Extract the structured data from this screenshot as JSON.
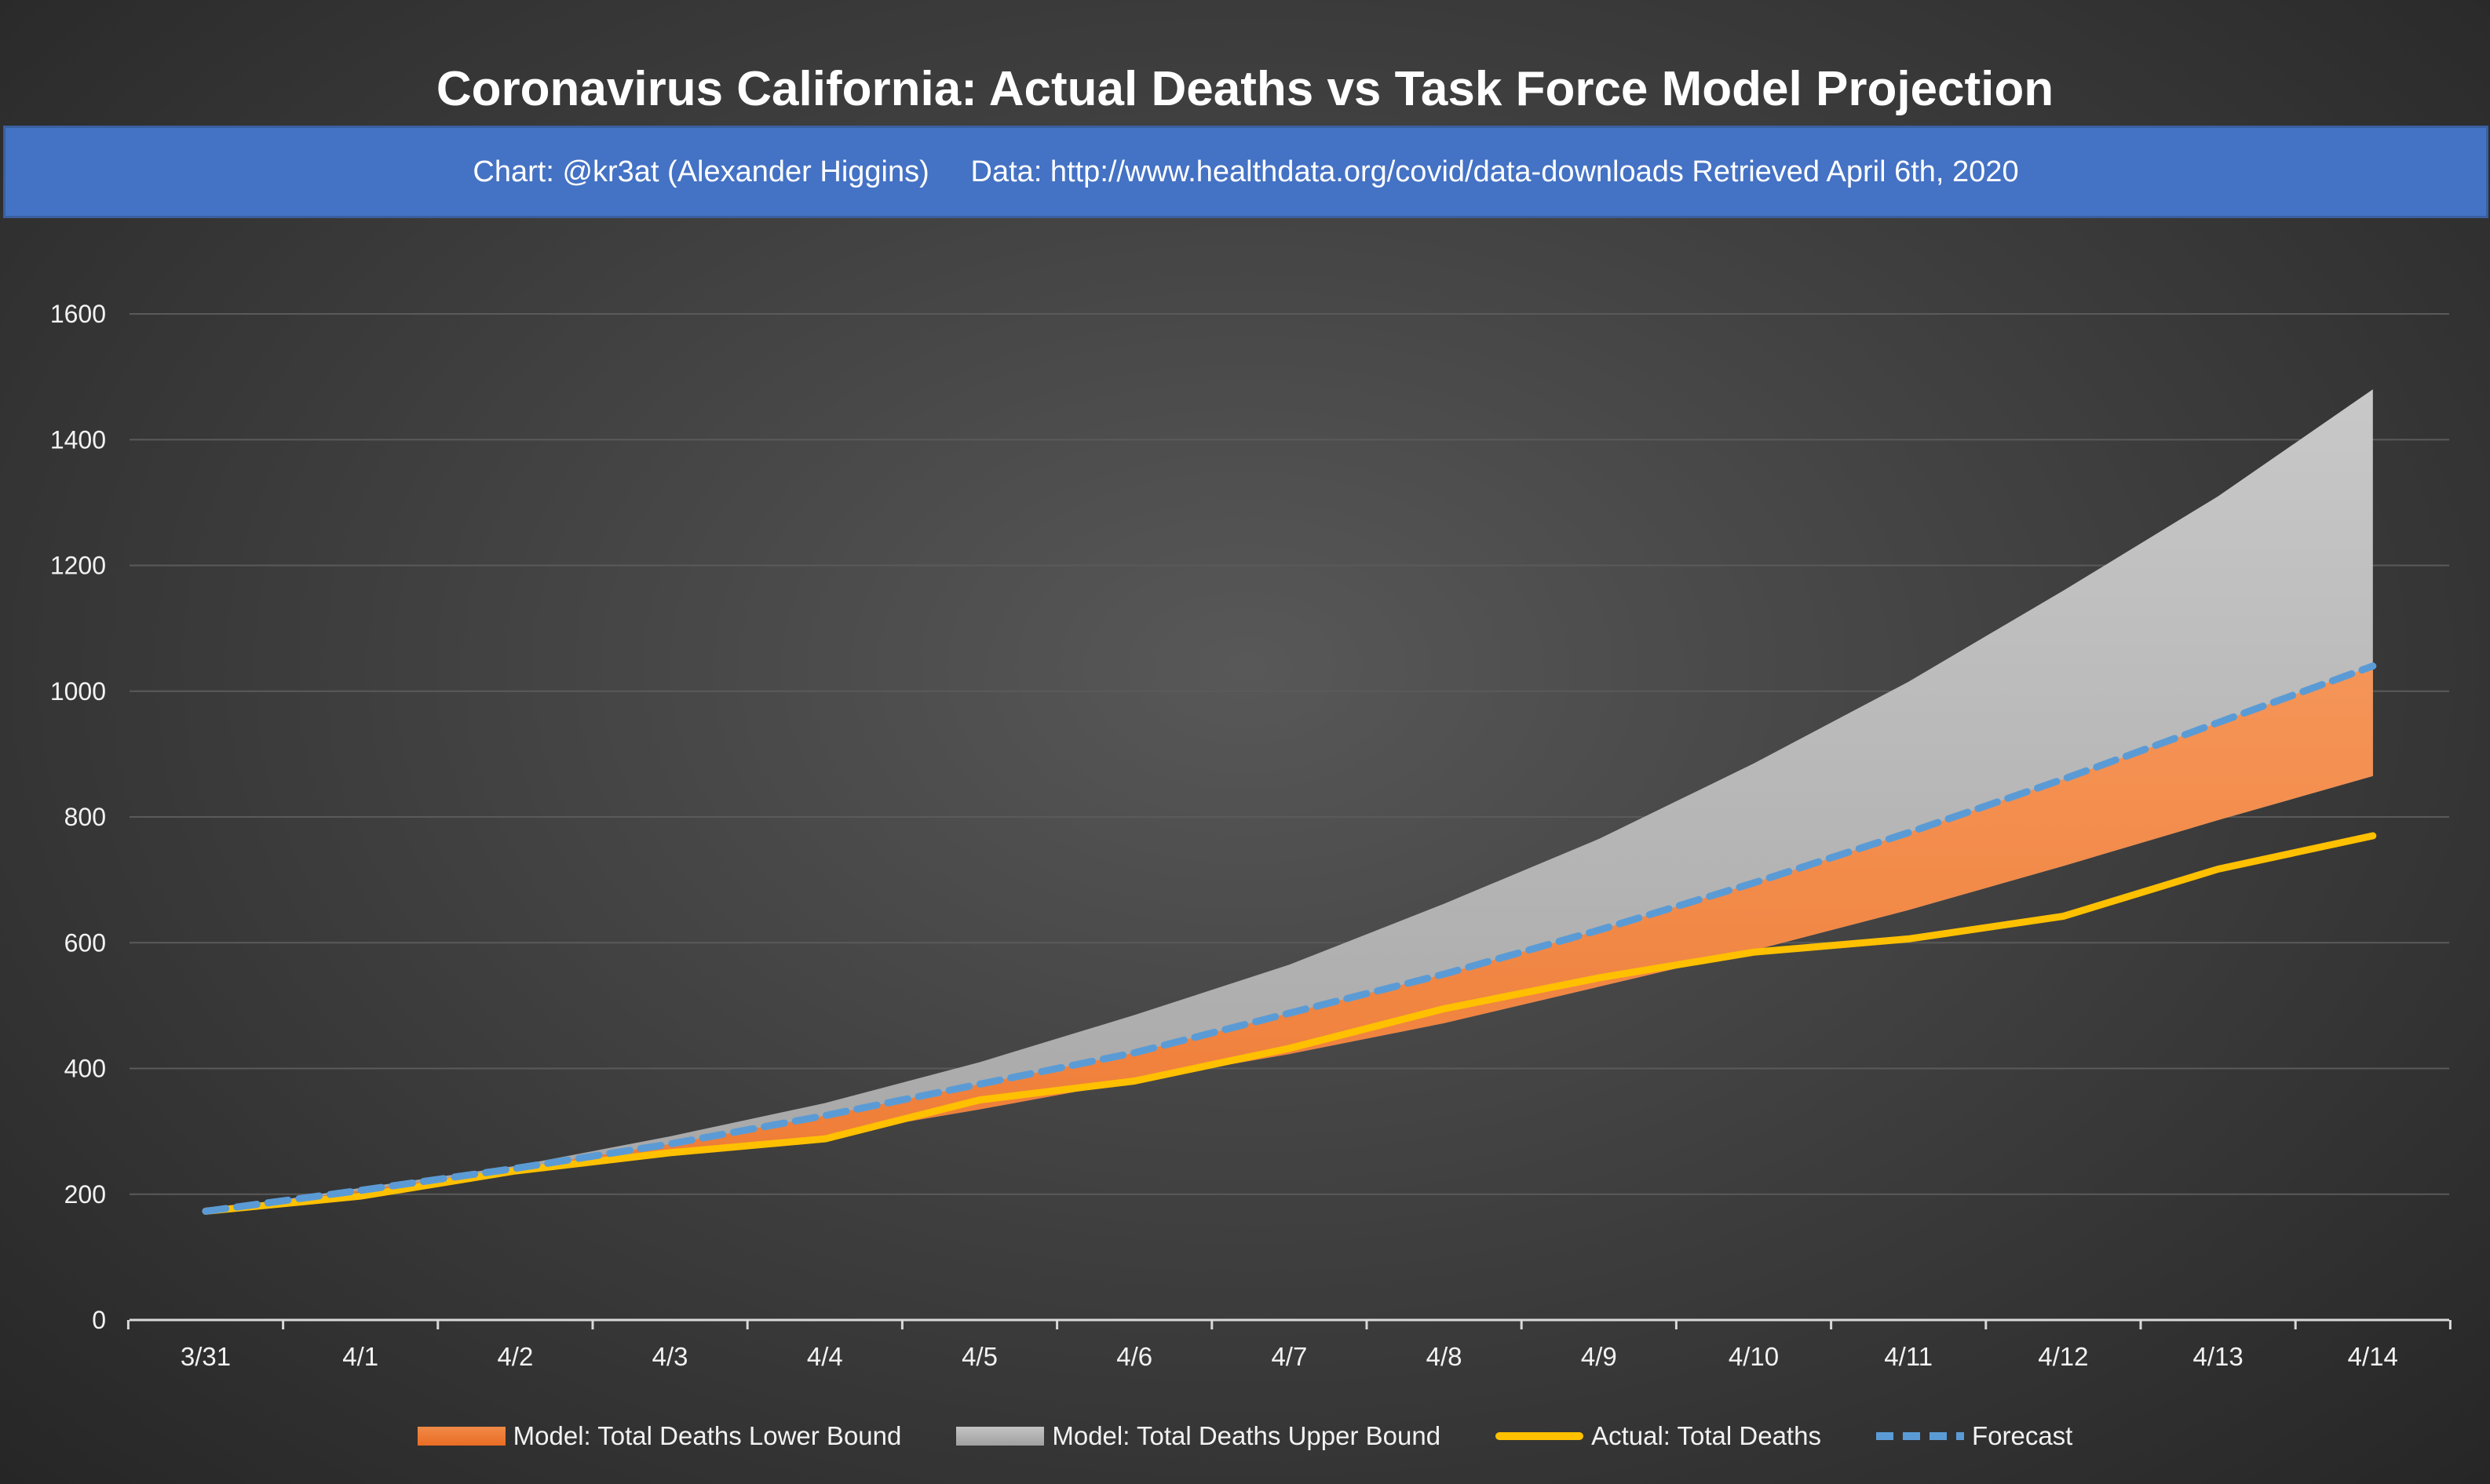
{
  "title": "Coronavirus California: Actual Deaths vs Task Force Model Projection",
  "subtitle": "Chart: @kr3at (Alexander Higgins)     Data: http://www.healthdata.org/covid/data-downloads Retrieved April 6th, 2020",
  "colors": {
    "lower_bound": "#ee7b34",
    "upper_bound": "#a6a6a6",
    "actual": "#ffc000",
    "forecast": "#5b9bd5"
  },
  "chart_data": {
    "type": "area",
    "categories": [
      "3/31",
      "4/1",
      "4/2",
      "4/3",
      "4/4",
      "4/5",
      "4/6",
      "4/7",
      "4/8",
      "4/9",
      "4/10",
      "4/11",
      "4/12",
      "4/13",
      "4/14"
    ],
    "ylim": [
      0,
      1600
    ],
    "yticks": [
      "0",
      "200",
      "400",
      "600",
      "800",
      "1000",
      "1200",
      "1400",
      "1600"
    ],
    "grid": true,
    "legend_position": "bottom",
    "series": [
      {
        "name": "Model: Total Deaths Lower Bound",
        "kind": "area",
        "values": [
          173,
          203,
          232,
          262,
          293,
          335,
          380,
          423,
          472,
          530,
          588,
          652,
          722,
          795,
          865
        ]
      },
      {
        "name": "Model: Total Deaths Upper Bound",
        "kind": "area",
        "values": [
          173,
          210,
          245,
          292,
          345,
          410,
          485,
          565,
          662,
          765,
          885,
          1015,
          1160,
          1310,
          1480
        ]
      },
      {
        "name": "Actual: Total Deaths",
        "kind": "line",
        "values": [
          173,
          197,
          237,
          266,
          288,
          350,
          380,
          432,
          495,
          544,
          585,
          606,
          642,
          717,
          770
        ]
      },
      {
        "name": "Forecast",
        "kind": "dashed-line",
        "values": [
          173,
          206,
          241,
          280,
          325,
          375,
          425,
          488,
          550,
          620,
          695,
          775,
          860,
          950,
          1040
        ]
      }
    ]
  }
}
